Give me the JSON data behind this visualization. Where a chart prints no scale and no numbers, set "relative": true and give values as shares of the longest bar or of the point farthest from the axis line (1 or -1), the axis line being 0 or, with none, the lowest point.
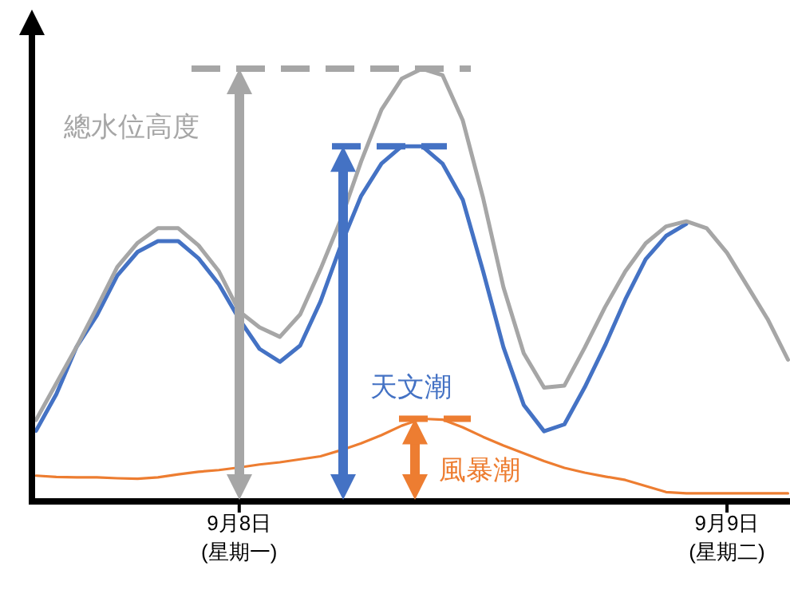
{
  "chart_data": {
    "type": "line",
    "relative": true,
    "marker": "none",
    "line_style": "solid",
    "categories": [
      null,
      null,
      null,
      null,
      null,
      null,
      null,
      null,
      null,
      null,
      "9月8日\n(星期一)",
      null,
      null,
      null,
      null,
      null,
      null,
      null,
      null,
      null,
      null,
      null,
      null,
      null,
      null,
      null,
      null,
      null,
      null,
      null,
      null,
      null,
      null,
      null,
      "9月9日\n(星期二)",
      null,
      null,
      null
    ],
    "series": [
      {
        "name": "總水位高度",
        "color": "#a6a6a6",
        "values": [
          0.185,
          0.27,
          0.355,
          0.446,
          0.54,
          0.596,
          0.63,
          0.63,
          0.59,
          0.53,
          0.437,
          0.4,
          0.378,
          0.43,
          0.535,
          0.65,
          0.785,
          0.905,
          0.977,
          1.0,
          0.985,
          0.88,
          0.7,
          0.493,
          0.34,
          0.26,
          0.265,
          0.353,
          0.447,
          0.53,
          0.595,
          0.634,
          0.646,
          0.63,
          0.573,
          0.496,
          0.419,
          0.325
        ]
      },
      {
        "name": "天文潮",
        "color": "#4472c4",
        "values": [
          0.16,
          0.245,
          0.355,
          0.428,
          0.52,
          0.575,
          0.6,
          0.6,
          0.56,
          0.5,
          0.419,
          0.35,
          0.32,
          0.358,
          0.46,
          0.59,
          0.705,
          0.78,
          0.82,
          0.82,
          0.78,
          0.696,
          0.53,
          0.354,
          0.22,
          0.159,
          0.175,
          0.261,
          0.358,
          0.465,
          0.558,
          0.612,
          0.64,
          null,
          null,
          null,
          null,
          null
        ]
      },
      {
        "name": "風暴潮",
        "color": "#ed7d31",
        "values": [
          0.056,
          0.053,
          0.052,
          0.052,
          0.05,
          0.049,
          0.052,
          0.059,
          0.065,
          0.069,
          0.075,
          0.082,
          0.087,
          0.094,
          0.101,
          0.115,
          0.131,
          0.15,
          0.172,
          0.188,
          0.186,
          0.168,
          0.146,
          0.126,
          0.108,
          0.09,
          0.074,
          0.063,
          0.054,
          0.046,
          0.032,
          0.018,
          0.015,
          0.015,
          0.015,
          0.015,
          0.015,
          0.015
        ]
      }
    ]
  }
}
